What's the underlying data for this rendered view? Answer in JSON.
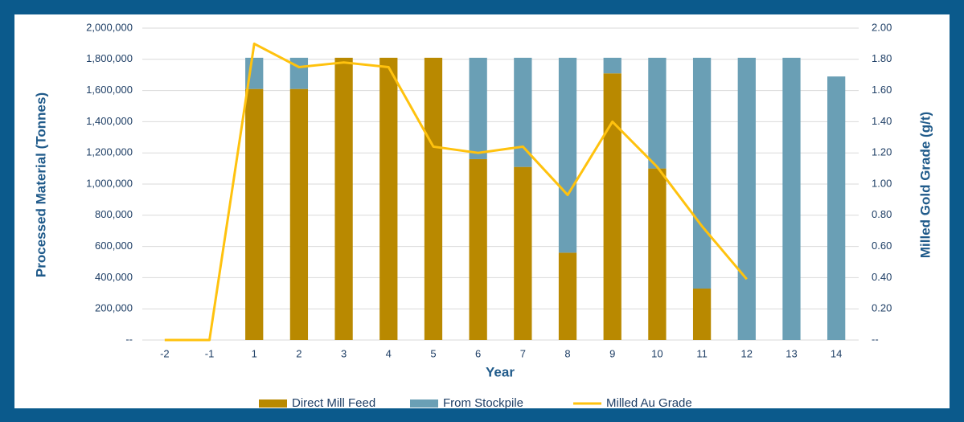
{
  "chart_data": {
    "type": "bar",
    "stacked": true,
    "xlabel": "Year",
    "ylabel": "Processed Material (Tonnes)",
    "y2label": "Milled Gold Grade (g/t)",
    "categories": [
      "-2",
      "-1",
      "1",
      "2",
      "3",
      "4",
      "5",
      "6",
      "7",
      "8",
      "9",
      "10",
      "11",
      "12",
      "13",
      "14"
    ],
    "series": [
      {
        "name": "Direct Mill Feed",
        "color": "#b98900",
        "values": [
          0,
          0,
          1610000,
          1610000,
          1810000,
          1810000,
          1810000,
          1160000,
          1110000,
          560000,
          1710000,
          1100000,
          330000,
          0,
          0,
          0
        ]
      },
      {
        "name": "From Stockpile",
        "color": "#6a9fb5",
        "values": [
          0,
          0,
          200000,
          200000,
          0,
          0,
          0,
          650000,
          700000,
          1250000,
          100000,
          710000,
          1480000,
          1810000,
          1810000,
          1690000
        ]
      },
      {
        "name": "Milled Au Grade",
        "color": "#ffc20e",
        "type": "line",
        "axis": "y2",
        "values": [
          0,
          0,
          1.9,
          1.75,
          1.78,
          1.75,
          1.24,
          1.2,
          1.24,
          0.93,
          1.4,
          1.11,
          0.73,
          0.39,
          null,
          null
        ]
      }
    ],
    "ylim": [
      0,
      2000000
    ],
    "yticks": [
      {
        "value": 0,
        "label": "--"
      },
      {
        "value": 200000,
        "label": "200,000"
      },
      {
        "value": 400000,
        "label": "400,000"
      },
      {
        "value": 600000,
        "label": "600,000"
      },
      {
        "value": 800000,
        "label": "800,000"
      },
      {
        "value": 1000000,
        "label": "1,000,000"
      },
      {
        "value": 1200000,
        "label": "1,200,000"
      },
      {
        "value": 1400000,
        "label": "1,400,000"
      },
      {
        "value": 1600000,
        "label": "1,600,000"
      },
      {
        "value": 1800000,
        "label": "1,800,000"
      },
      {
        "value": 2000000,
        "label": "2,000,000"
      }
    ],
    "y2lim": [
      0,
      2
    ],
    "y2ticks": [
      {
        "value": 0,
        "label": "--"
      },
      {
        "value": 0.2,
        "label": "0.20"
      },
      {
        "value": 0.4,
        "label": "0.40"
      },
      {
        "value": 0.6,
        "label": "0.60"
      },
      {
        "value": 0.8,
        "label": "0.80"
      },
      {
        "value": 1.0,
        "label": "1.00"
      },
      {
        "value": 1.2,
        "label": "1.20"
      },
      {
        "value": 1.4,
        "label": "1.40"
      },
      {
        "value": 1.6,
        "label": "1.60"
      },
      {
        "value": 1.8,
        "label": "1.80"
      },
      {
        "value": 2.0,
        "label": "2.00"
      }
    ],
    "grid": true,
    "legend": "bottom"
  }
}
